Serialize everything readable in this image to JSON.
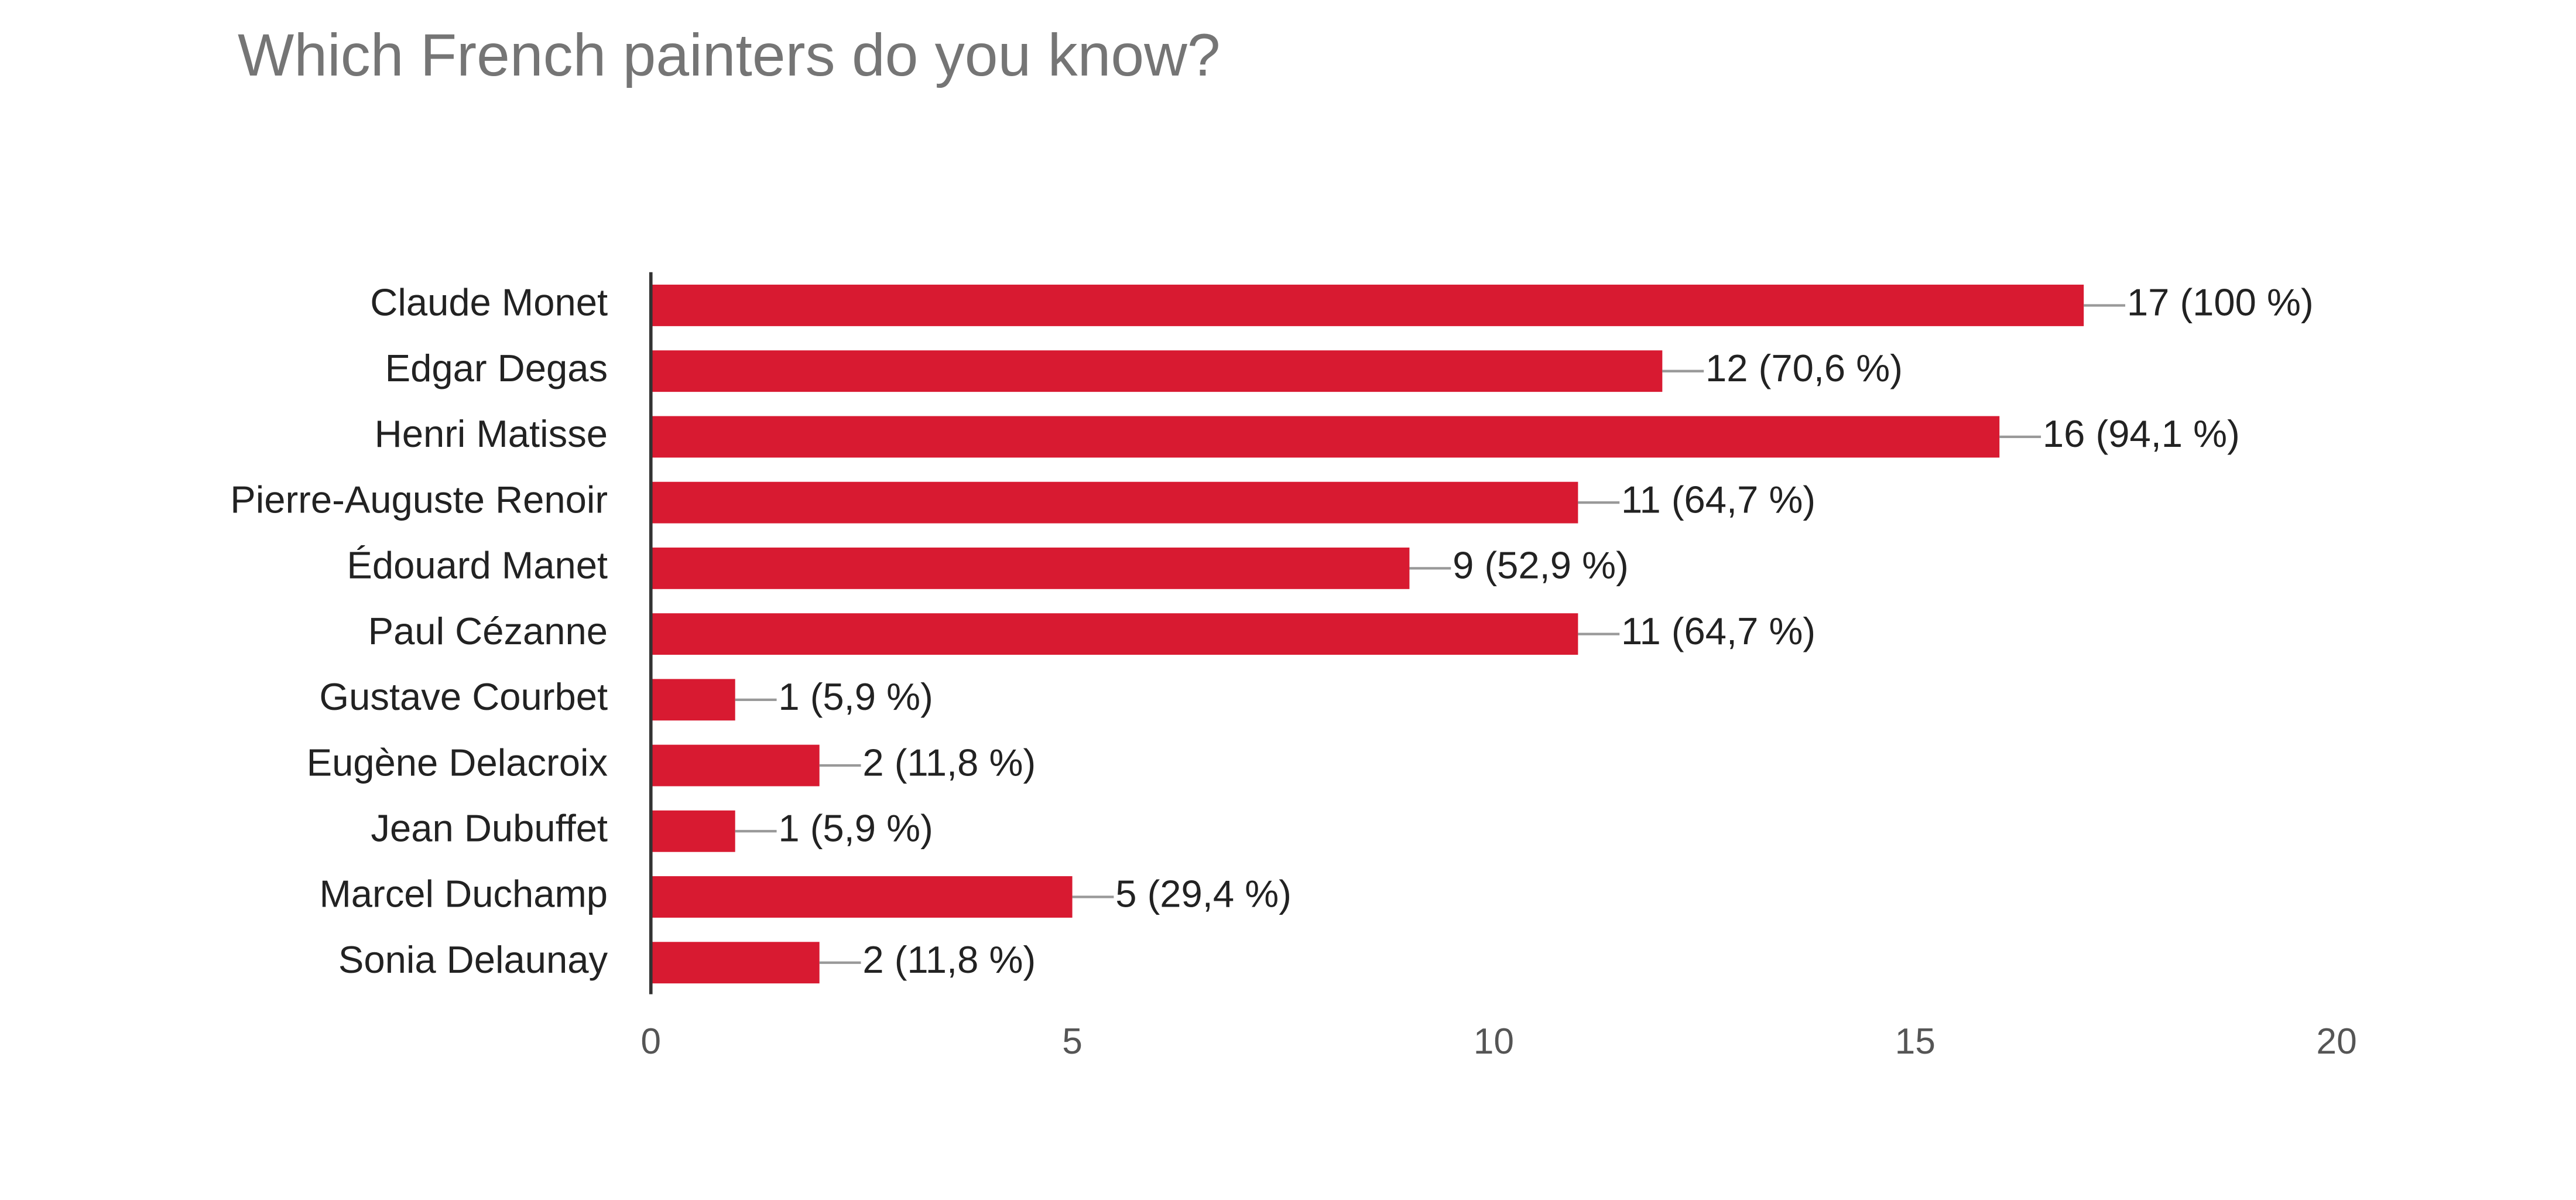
{
  "chart_data": {
    "type": "bar",
    "orientation": "horizontal",
    "title": "Which French painters do you know?",
    "categories": [
      "Claude Monet",
      "Edgar Degas",
      "Henri Matisse",
      "Pierre-Auguste Renoir",
      "Édouard Manet",
      "Paul Cézanne",
      "Gustave Courbet",
      "Eugène Delacroix",
      "Jean Dubuffet",
      "Marcel Duchamp",
      "Sonia Delaunay"
    ],
    "values": [
      17,
      12,
      16,
      11,
      9,
      11,
      1,
      2,
      1,
      5,
      2
    ],
    "value_labels": [
      "17 (100 %)",
      "12 (70,6 %)",
      "16 (94,1 %)",
      "11 (64,7 %)",
      "9 (52,9 %)",
      "11 (64,7 %)",
      "1 (5,9 %)",
      "2 (11,8 %)",
      "1 (5,9 %)",
      "5 (29,4 %)",
      "2 (11,8 %)"
    ],
    "color": "#d81a31",
    "xlim": [
      0,
      20
    ],
    "xticks": [
      0,
      5,
      10,
      15,
      20
    ],
    "grid": false
  }
}
